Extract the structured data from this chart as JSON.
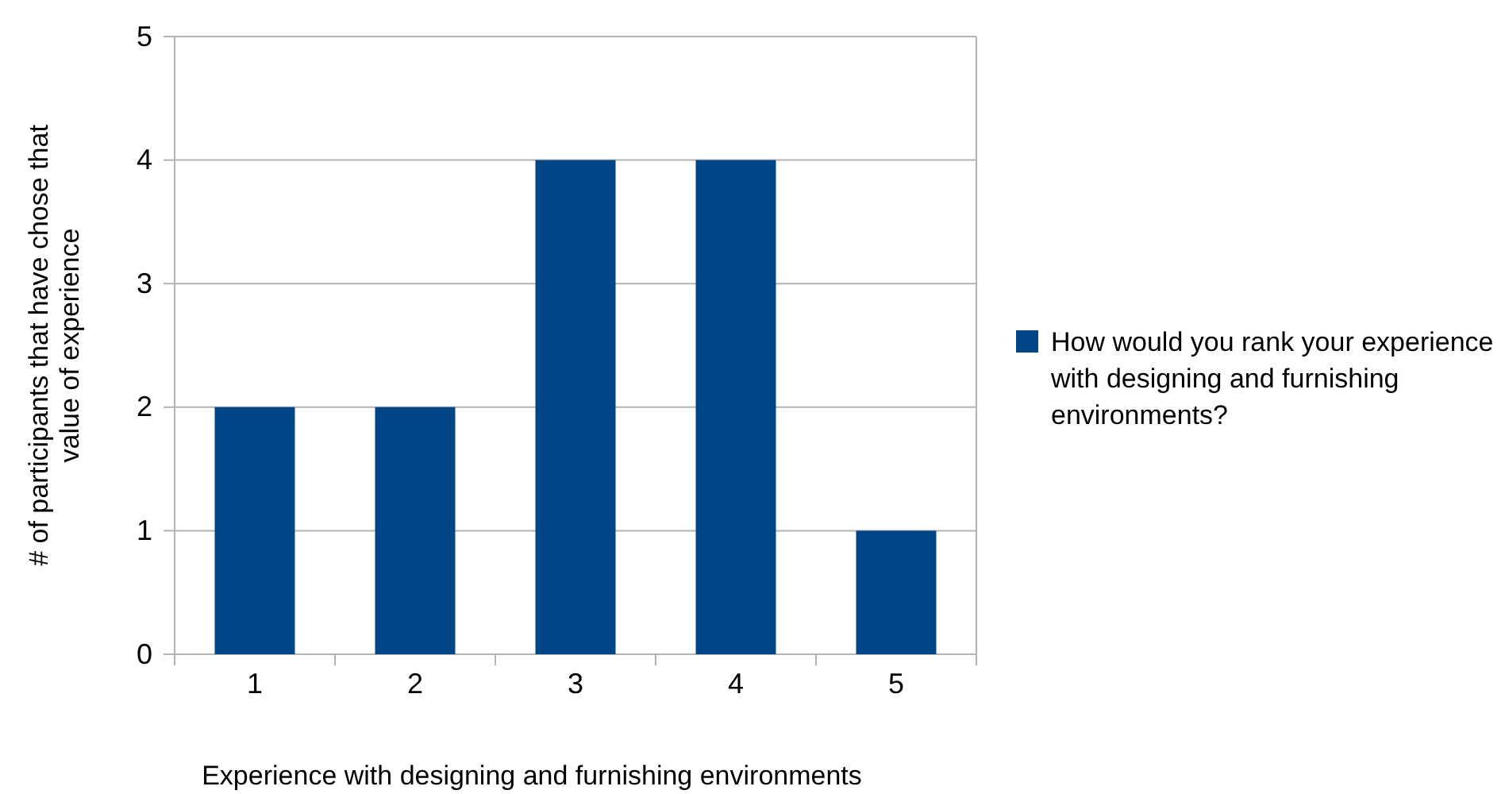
{
  "chart_data": {
    "type": "bar",
    "categories": [
      "1",
      "2",
      "3",
      "4",
      "5"
    ],
    "series": [
      {
        "name": "How would you rank your experience with designing and furnishing environments?",
        "color": "#004586",
        "values": [
          2,
          2,
          4,
          4,
          1
        ]
      }
    ],
    "xlabel": "Experience with designing and furnishing environments",
    "ylabel": "# of participants that have chose that value of experience",
    "ylim": [
      0,
      5
    ],
    "yticks": [
      0,
      1,
      2,
      3,
      4,
      5
    ],
    "grid": "y",
    "legend": "right"
  }
}
